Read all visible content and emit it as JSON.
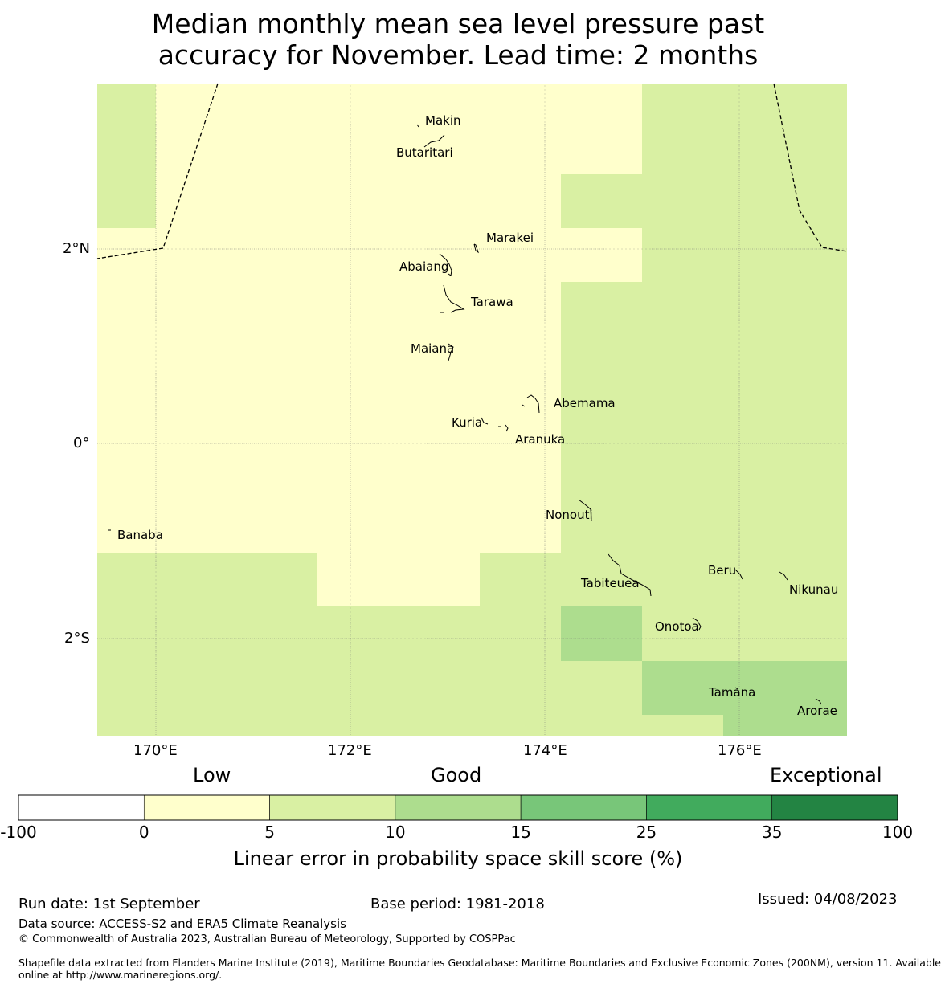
{
  "title_lines": [
    "Median monthly mean sea level pressure past",
    "accuracy for November. Lead time: 2 months"
  ],
  "map": {
    "lat_labels": [
      "2°N",
      "0°",
      "2°S"
    ],
    "lon_labels": [
      "170°E",
      "172°E",
      "174°E",
      "176°E"
    ],
    "islands": [
      "Makin",
      "Butaritari",
      "Marakei",
      "Abaiang",
      "Tarawa",
      "Maiana",
      "Abemama",
      "Kuria",
      "Aranuka",
      "Nonouti",
      "Banaba",
      "Tabiteuea",
      "Beru",
      "Nikunau",
      "Onotoa",
      "Tamana",
      "Arorae"
    ],
    "colors": {
      "low": "#ffffcc",
      "good_low": "#d9f0a3",
      "good_high": "#addd8e"
    }
  },
  "colorbar": {
    "categories": [
      "Low",
      "Good",
      "Exceptional"
    ],
    "ticks": [
      "-100",
      "0",
      "5",
      "10",
      "15",
      "25",
      "35",
      "100"
    ],
    "colors": [
      "#ffffff",
      "#ffffcc",
      "#d9f0a3",
      "#addd8e",
      "#78c679",
      "#41ab5d",
      "#238443"
    ],
    "title": "Linear error in probability space skill score (%)"
  },
  "footer": {
    "run_date": "Run date: 1st September",
    "base_period": "Base period: 1981-2018",
    "issued": "Issued: 04/08/2023",
    "data_source": "Data source: ACCESS-S2 and ERA5 Climate Reanalysis",
    "copyright": "© Commonwealth of Australia 2023, Australian Bureau of Meteorology, Supported by COSPPac",
    "shapefile_line1": "Shapefile data extracted from Flanders Marine Institute (2019), Maritime Boundaries Geodatabase: Maritime Boundaries and Exclusive Economic Zones (200NM), version 11. Available",
    "shapefile_line2": "online at http://www.marineregions.org/."
  }
}
